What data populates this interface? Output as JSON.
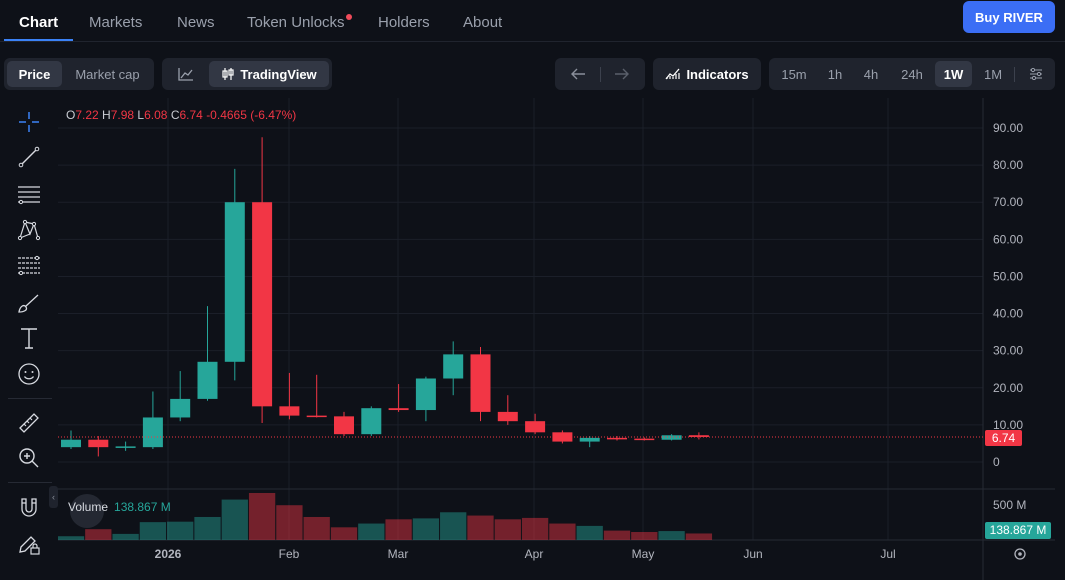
{
  "nav": {
    "tabs": [
      "Chart",
      "Markets",
      "News",
      "Token Unlocks",
      "Holders",
      "About"
    ],
    "buy_label": "Buy RIVER"
  },
  "toolbar": {
    "price": "Price",
    "market_cap": "Market cap",
    "tradingview": "TradingView",
    "indicators": "Indicators",
    "intervals": [
      "15m",
      "1h",
      "4h",
      "24h",
      "1W",
      "1M"
    ],
    "active_interval": "1W"
  },
  "legend": {
    "o_label": "O",
    "o_val": "7.22",
    "h_label": "H",
    "h_val": "7.98",
    "l_label": "L",
    "l_val": "6.08",
    "c_label": "C",
    "c_val": "6.74",
    "change": "-0.4665 (-6.47%)"
  },
  "volume": {
    "label": "Volume",
    "value": "138.867 M",
    "axis_label": "500 M"
  },
  "last_price": "6.74",
  "colors": {
    "up": "#26a69a",
    "down": "#f23645",
    "accent": "#3b6ef5",
    "background": "#0e1118"
  },
  "chart_data": {
    "type": "candlestick",
    "y_ticks": [
      "90.00",
      "80.00",
      "70.00",
      "60.00",
      "50.00",
      "40.00",
      "30.00",
      "20.00",
      "10.00",
      "0"
    ],
    "ylim": [
      0,
      90
    ],
    "x_labels": [
      "2026",
      "Feb",
      "Mar",
      "Apr",
      "May",
      "Jun",
      "Jul"
    ],
    "candles": [
      {
        "o": 4.0,
        "h": 8.5,
        "l": 3.5,
        "c": 6.0
      },
      {
        "o": 6.0,
        "h": 7.0,
        "l": 1.5,
        "c": 4.0
      },
      {
        "o": 4.0,
        "h": 5.5,
        "l": 3.0,
        "c": 4.2
      },
      {
        "o": 4.0,
        "h": 19.0,
        "l": 3.5,
        "c": 12.0
      },
      {
        "o": 12.0,
        "h": 24.5,
        "l": 11.0,
        "c": 17.0
      },
      {
        "o": 17.0,
        "h": 42.0,
        "l": 16.5,
        "c": 27.0
      },
      {
        "o": 27.0,
        "h": 79.0,
        "l": 22.0,
        "c": 70.0
      },
      {
        "o": 70.0,
        "h": 87.5,
        "l": 10.5,
        "c": 15.0
      },
      {
        "o": 15.0,
        "h": 24.0,
        "l": 11.5,
        "c": 12.5
      },
      {
        "o": 12.5,
        "h": 23.5,
        "l": 12.0,
        "c": 12.3
      },
      {
        "o": 12.3,
        "h": 13.5,
        "l": 7.0,
        "c": 7.5
      },
      {
        "o": 7.5,
        "h": 15.0,
        "l": 7.0,
        "c": 14.5
      },
      {
        "o": 14.5,
        "h": 21.0,
        "l": 13.5,
        "c": 14.0
      },
      {
        "o": 14.0,
        "h": 23.0,
        "l": 11.0,
        "c": 22.5
      },
      {
        "o": 22.5,
        "h": 32.5,
        "l": 18.0,
        "c": 29.0
      },
      {
        "o": 29.0,
        "h": 31.0,
        "l": 11.0,
        "c": 13.5
      },
      {
        "o": 13.5,
        "h": 18.0,
        "l": 10.0,
        "c": 11.0
      },
      {
        "o": 11.0,
        "h": 13.0,
        "l": 7.5,
        "c": 8.0
      },
      {
        "o": 8.0,
        "h": 8.5,
        "l": 5.0,
        "c": 5.5
      },
      {
        "o": 5.5,
        "h": 7.0,
        "l": 4.0,
        "c": 6.5
      },
      {
        "o": 6.5,
        "h": 7.0,
        "l": 5.8,
        "c": 6.2
      },
      {
        "o": 6.3,
        "h": 6.6,
        "l": 5.8,
        "c": 6.1
      },
      {
        "o": 6.0,
        "h": 7.5,
        "l": 5.8,
        "c": 7.2
      },
      {
        "o": 7.22,
        "h": 7.98,
        "l": 6.08,
        "c": 6.74
      }
    ],
    "volumes": [
      80,
      230,
      130,
      380,
      390,
      490,
      860,
      1000,
      740,
      490,
      270,
      350,
      440,
      460,
      590,
      520,
      440,
      470,
      350,
      300,
      200,
      170,
      190,
      139
    ]
  }
}
